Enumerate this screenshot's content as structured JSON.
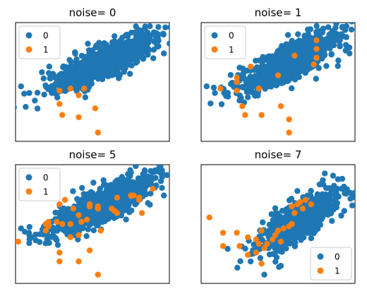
{
  "figure": {
    "colors": {
      "class0": "#1f77b4",
      "class1": "#ff7f0e"
    }
  },
  "chart_data": [
    {
      "type": "scatter",
      "title": "noise= 0",
      "legend": {
        "placement": "upper-left",
        "entries": [
          "0",
          "1"
        ]
      },
      "xlim": [
        -2.6,
        3.0
      ],
      "ylim": [
        -3.0,
        2.4
      ],
      "axes_ticks": false,
      "class0_cloud": {
        "center": [
          0.6,
          0.6
        ],
        "direction": [
          0.83,
          0.56
        ],
        "spread_major": 1.1,
        "spread_minor": 0.32,
        "n": 900
      },
      "series": [
        {
          "name": "0",
          "points": [
            [
              -2.4,
              -0.5
            ],
            [
              -2.1,
              -0.8
            ],
            [
              2.3,
              1.8
            ],
            [
              2.8,
              1.0
            ],
            [
              2.6,
              2.2
            ],
            [
              2.5,
              1.8
            ]
          ]
        },
        {
          "name": "1",
          "points": [
            [
              -1.0,
              -0.7
            ],
            [
              -0.3,
              -0.9
            ],
            [
              -0.6,
              -0.6
            ],
            [
              -0.1,
              -0.6
            ],
            [
              -1.0,
              -1.3
            ],
            [
              -0.9,
              -1.8
            ],
            [
              -0.3,
              -1.9
            ],
            [
              0.3,
              -1.5
            ],
            [
              0.4,
              -2.6
            ]
          ]
        }
      ]
    },
    {
      "type": "scatter",
      "title": "noise= 1",
      "legend": {
        "placement": "upper-left",
        "entries": [
          "0",
          "1"
        ]
      },
      "xlim": [
        -2.6,
        3.0
      ],
      "ylim": [
        -3.0,
        2.4
      ],
      "axes_ticks": false,
      "class0_cloud": {
        "center": [
          0.6,
          0.6
        ],
        "direction": [
          0.83,
          0.56
        ],
        "spread_major": 1.1,
        "spread_minor": 0.32,
        "n": 900
      },
      "series": [
        {
          "name": "0",
          "points": [
            [
              -2.4,
              -0.5
            ],
            [
              -2.1,
              -0.8
            ],
            [
              2.3,
              1.8
            ],
            [
              2.8,
              1.0
            ],
            [
              2.6,
              2.2
            ],
            [
              2.5,
              1.8
            ]
          ]
        },
        {
          "name": "1",
          "points": [
            [
              -1.9,
              -0.6
            ],
            [
              -1.3,
              -0.3
            ],
            [
              -1.3,
              -0.1
            ],
            [
              -1.3,
              -0.7
            ],
            [
              -0.8,
              0.4
            ],
            [
              -0.5,
              -0.6
            ],
            [
              0.2,
              0.0
            ],
            [
              0.8,
              0.9
            ],
            [
              1.6,
              1.2
            ],
            [
              1.6,
              0.8
            ],
            [
              1.5,
              0.5
            ],
            [
              1.6,
              1.6
            ],
            [
              -1.1,
              -1.4
            ],
            [
              -1.0,
              -1.8
            ],
            [
              -0.4,
              -1.8
            ],
            [
              0.3,
              -1.4
            ],
            [
              0.6,
              -2.0
            ],
            [
              0.6,
              -2.6
            ]
          ]
        }
      ]
    },
    {
      "type": "scatter",
      "title": "noise= 5",
      "legend": {
        "placement": "upper-left",
        "entries": [
          "0",
          "1"
        ]
      },
      "xlim": [
        -2.6,
        3.0
      ],
      "ylim": [
        -3.0,
        2.4
      ],
      "axes_ticks": false,
      "class0_cloud": {
        "center": [
          0.6,
          0.6
        ],
        "direction": [
          0.83,
          0.56
        ],
        "spread_major": 1.1,
        "spread_minor": 0.32,
        "n": 900
      },
      "series": [
        {
          "name": "0",
          "points": [
            [
              -2.4,
              -0.5
            ],
            [
              -2.1,
              -0.8
            ],
            [
              2.3,
              1.8
            ],
            [
              2.8,
              1.0
            ],
            [
              2.6,
              2.2
            ],
            [
              2.5,
              1.8
            ]
          ]
        },
        {
          "name": "1",
          "points": [
            [
              -2.5,
              -1.1
            ],
            [
              -1.5,
              -0.6
            ],
            [
              -1.4,
              -0.4
            ],
            [
              -1.5,
              -0.3
            ],
            [
              -1.4,
              -0.2
            ],
            [
              -1.1,
              -0.2
            ],
            [
              -1.0,
              0.6
            ],
            [
              -0.9,
              -0.3
            ],
            [
              -0.6,
              -0.3
            ],
            [
              -0.5,
              0.4
            ],
            [
              -0.3,
              0.1
            ],
            [
              -0.3,
              -0.8
            ],
            [
              -0.2,
              -0.2
            ],
            [
              0.0,
              -0.1
            ],
            [
              0.1,
              0.5
            ],
            [
              0.1,
              0.6
            ],
            [
              0.4,
              0.4
            ],
            [
              0.4,
              0.5
            ],
            [
              0.5,
              -0.6
            ],
            [
              0.9,
              0.4
            ],
            [
              1.0,
              0.3
            ],
            [
              1.1,
              0.2
            ],
            [
              1.1,
              0.9
            ],
            [
              1.6,
              1.0
            ],
            [
              1.7,
              1.0
            ],
            [
              1.9,
              0.9
            ],
            [
              1.9,
              0.8
            ],
            [
              2.0,
              0.2
            ],
            [
              2.4,
              1.3
            ],
            [
              -0.6,
              -0.9
            ],
            [
              -1.0,
              -1.6
            ],
            [
              -1.0,
              -2.0
            ],
            [
              -0.3,
              -2.0
            ],
            [
              0.1,
              -1.5
            ],
            [
              0.4,
              -2.6
            ],
            [
              -0.8,
              0.8
            ]
          ]
        }
      ]
    },
    {
      "type": "scatter",
      "title": "noise= 7",
      "legend": {
        "placement": "lower-right",
        "entries": [
          "0",
          "1"
        ]
      },
      "xlim": [
        -2.6,
        3.0
      ],
      "ylim": [
        -3.0,
        2.4
      ],
      "axes_ticks": false,
      "class0_cloud": {
        "center": [
          0.9,
          -0.2
        ],
        "direction": [
          0.75,
          0.66
        ],
        "spread_major": 0.95,
        "spread_minor": 0.35,
        "n": 700
      },
      "series": [
        {
          "name": "0",
          "points": [
            [
              -0.8,
              -2.0
            ],
            [
              -0.3,
              -2.6
            ],
            [
              1.9,
              2.0
            ],
            [
              2.2,
              1.9
            ],
            [
              2.6,
              1.4
            ],
            [
              0.9,
              1.2
            ],
            [
              0.3,
              -2.2
            ]
          ]
        },
        {
          "name": "1",
          "points": [
            [
              -2.3,
              0.0
            ],
            [
              -1.8,
              -0.7
            ],
            [
              -1.8,
              -1.3
            ],
            [
              -1.3,
              -0.7
            ],
            [
              -1.2,
              -1.3
            ],
            [
              -0.9,
              -0.9
            ],
            [
              -0.6,
              -1.0
            ],
            [
              -0.4,
              -0.6
            ],
            [
              -0.5,
              -1.2
            ],
            [
              -0.3,
              -1.4
            ],
            [
              -0.2,
              -1.2
            ],
            [
              0.0,
              -1.0
            ],
            [
              0.1,
              -0.8
            ],
            [
              0.2,
              -0.6
            ],
            [
              0.3,
              -1.1
            ],
            [
              0.4,
              -0.5
            ],
            [
              0.6,
              -0.4
            ],
            [
              0.7,
              0.5
            ],
            [
              0.8,
              0.2
            ],
            [
              0.9,
              0.6
            ],
            [
              1.0,
              0.7
            ],
            [
              1.1,
              0.4
            ],
            [
              1.2,
              0.8
            ],
            [
              1.4,
              0.6
            ],
            [
              0.7,
              -0.3
            ],
            [
              -0.4,
              -2.1
            ],
            [
              -0.6,
              -1.6
            ],
            [
              -0.9,
              -1.7
            ]
          ]
        }
      ]
    }
  ]
}
